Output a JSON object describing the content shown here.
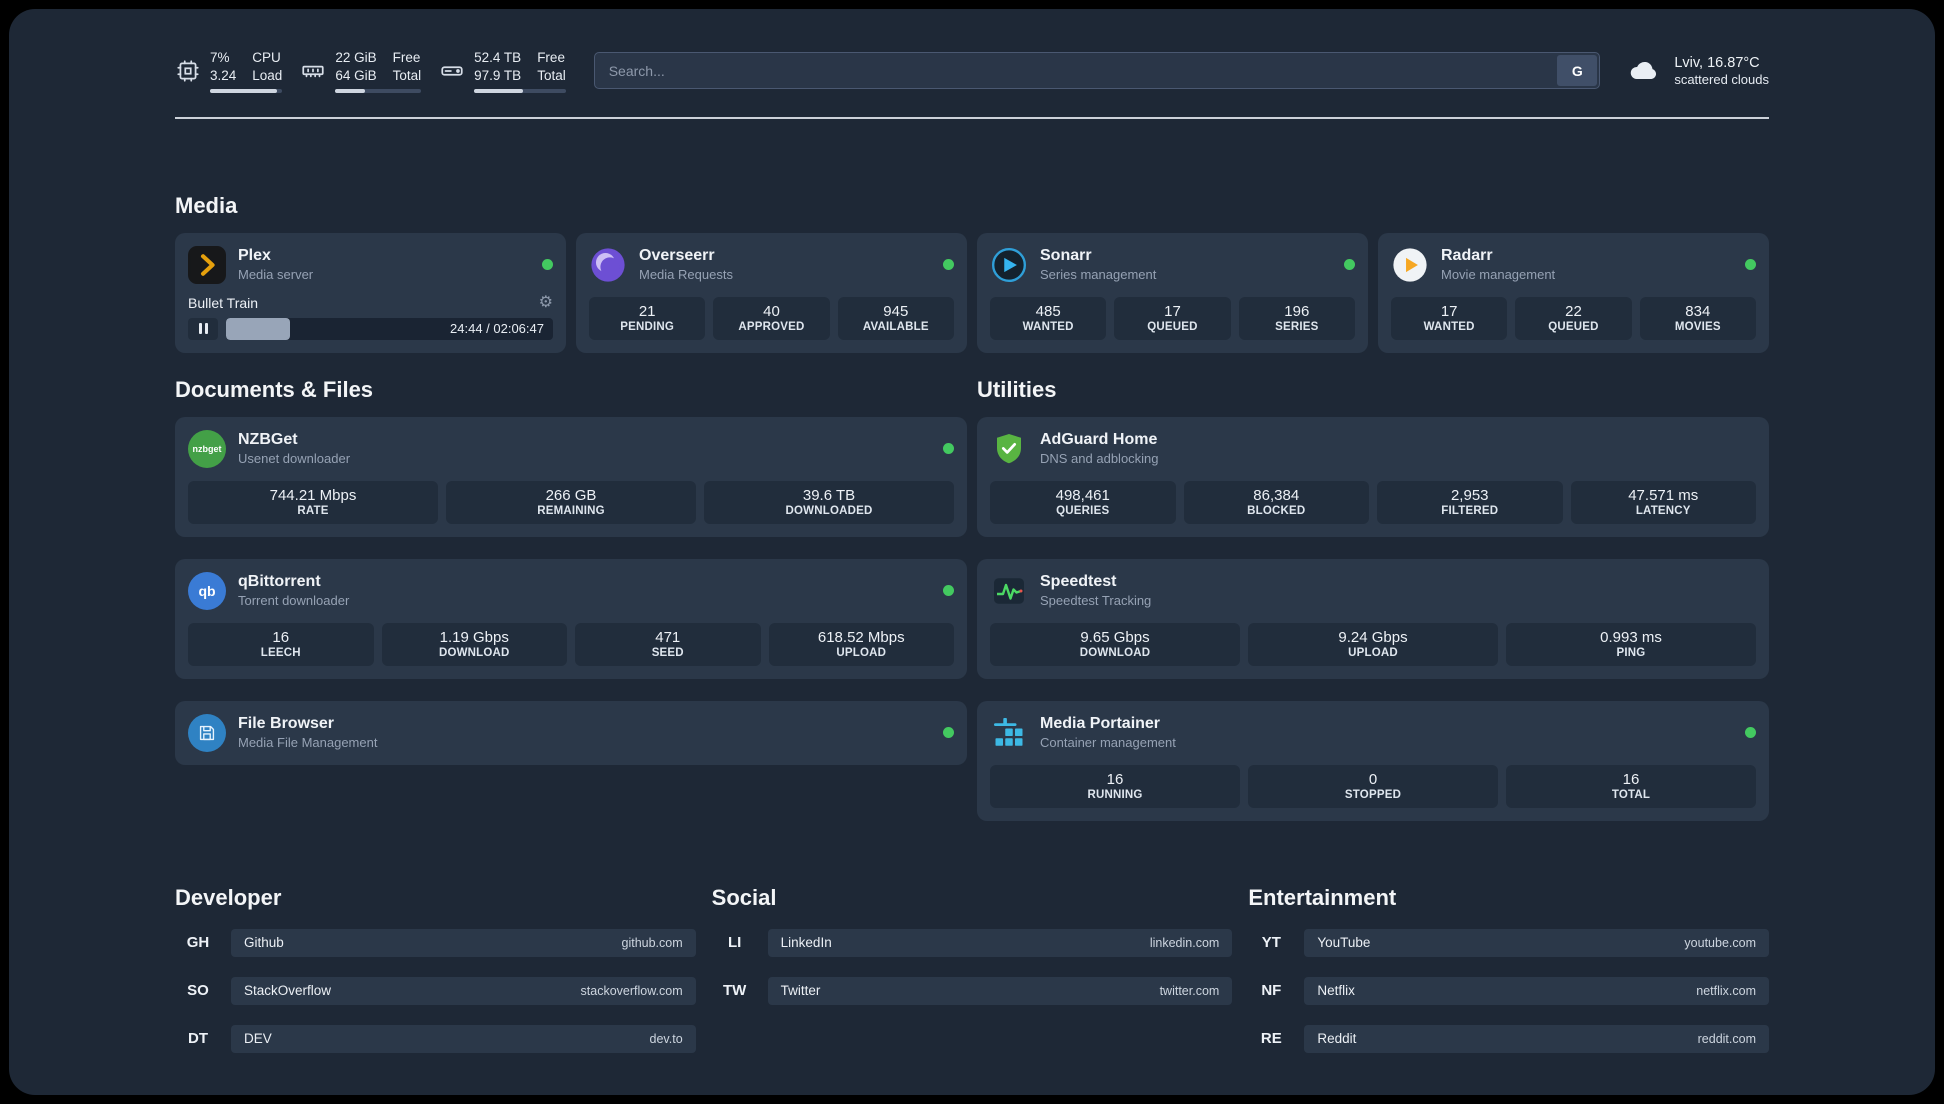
{
  "colors": {
    "background": "#1e2836",
    "card": "#2b3849",
    "status_green": "#43c960",
    "divider": "#ccd1d9",
    "plex_amber": "#e5a00d",
    "sonarr_blue": "#35b5f0",
    "radarr_amber": "#f6a723",
    "overseerr_purple": "#6d4fd4",
    "adguard_green": "#59b442",
    "portainer_cyan": "#3db9e5"
  },
  "topbar": {
    "cpu": {
      "value1": "7%",
      "value2": "3.24",
      "label1": "CPU",
      "label2": "Load",
      "bar_percent": 93
    },
    "ram": {
      "value1": "22 GiB",
      "value2": "64 GiB",
      "label1": "Free",
      "label2": "Total",
      "bar_percent": 34
    },
    "disk": {
      "value1": "52.4 TB",
      "value2": "97.9 TB",
      "label1": "Free",
      "label2": "Total",
      "bar_percent": 53
    },
    "search": {
      "placeholder": "Search...",
      "engine_label": "G"
    },
    "weather": {
      "location": "Lviv, 16.87°C",
      "condition": "scattered clouds"
    }
  },
  "media": {
    "title": "Media",
    "plex": {
      "name": "Plex",
      "subtitle": "Media server",
      "now_playing": "Bullet Train",
      "time": "24:44 / 02:06:47",
      "progress_percent": 19.5
    },
    "overseerr": {
      "name": "Overseerr",
      "subtitle": "Media Requests",
      "stats": [
        {
          "value": "21",
          "label": "PENDING"
        },
        {
          "value": "40",
          "label": "APPROVED"
        },
        {
          "value": "945",
          "label": "AVAILABLE"
        }
      ]
    },
    "sonarr": {
      "name": "Sonarr",
      "subtitle": "Series management",
      "stats": [
        {
          "value": "485",
          "label": "WANTED"
        },
        {
          "value": "17",
          "label": "QUEUED"
        },
        {
          "value": "196",
          "label": "SERIES"
        }
      ]
    },
    "radarr": {
      "name": "Radarr",
      "subtitle": "Movie management",
      "stats": [
        {
          "value": "17",
          "label": "WANTED"
        },
        {
          "value": "22",
          "label": "QUEUED"
        },
        {
          "value": "834",
          "label": "MOVIES"
        }
      ]
    }
  },
  "documents": {
    "title": "Documents & Files",
    "nzbget": {
      "name": "NZBGet",
      "subtitle": "Usenet downloader",
      "icon_text": "nzbget",
      "stats": [
        {
          "value": "744.21 Mbps",
          "label": "RATE"
        },
        {
          "value": "266 GB",
          "label": "REMAINING"
        },
        {
          "value": "39.6 TB",
          "label": "DOWNLOADED"
        }
      ]
    },
    "qbittorrent": {
      "name": "qBittorrent",
      "subtitle": "Torrent downloader",
      "icon_text": "qb",
      "stats": [
        {
          "value": "16",
          "label": "LEECH"
        },
        {
          "value": "1.19 Gbps",
          "label": "DOWNLOAD"
        },
        {
          "value": "471",
          "label": "SEED"
        },
        {
          "value": "618.52 Mbps",
          "label": "UPLOAD"
        }
      ]
    },
    "filebrowser": {
      "name": "File Browser",
      "subtitle": "Media File Management"
    }
  },
  "utilities": {
    "title": "Utilities",
    "adguard": {
      "name": "AdGuard Home",
      "subtitle": "DNS and adblocking",
      "stats": [
        {
          "value": "498,461",
          "label": "QUERIES"
        },
        {
          "value": "86,384",
          "label": "BLOCKED"
        },
        {
          "value": "2,953",
          "label": "FILTERED"
        },
        {
          "value": "47.571 ms",
          "label": "LATENCY"
        }
      ]
    },
    "speedtest": {
      "name": "Speedtest",
      "subtitle": "Speedtest Tracking",
      "stats": [
        {
          "value": "9.65 Gbps",
          "label": "DOWNLOAD"
        },
        {
          "value": "9.24 Gbps",
          "label": "UPLOAD"
        },
        {
          "value": "0.993 ms",
          "label": "PING"
        }
      ]
    },
    "portainer": {
      "name": "Media Portainer",
      "subtitle": "Container management",
      "stats": [
        {
          "value": "16",
          "label": "RUNNING"
        },
        {
          "value": "0",
          "label": "STOPPED"
        },
        {
          "value": "16",
          "label": "TOTAL"
        }
      ]
    }
  },
  "bookmarks": {
    "developer": {
      "title": "Developer",
      "items": [
        {
          "abbr": "GH",
          "name": "Github",
          "url": "github.com"
        },
        {
          "abbr": "SO",
          "name": "StackOverflow",
          "url": "stackoverflow.com"
        },
        {
          "abbr": "DT",
          "name": "DEV",
          "url": "dev.to"
        }
      ]
    },
    "social": {
      "title": "Social",
      "items": [
        {
          "abbr": "LI",
          "name": "LinkedIn",
          "url": "linkedin.com"
        },
        {
          "abbr": "TW",
          "name": "Twitter",
          "url": "twitter.com"
        }
      ]
    },
    "entertainment": {
      "title": "Entertainment",
      "items": [
        {
          "abbr": "YT",
          "name": "YouTube",
          "url": "youtube.com"
        },
        {
          "abbr": "NF",
          "name": "Netflix",
          "url": "netflix.com"
        },
        {
          "abbr": "RE",
          "name": "Reddit",
          "url": "reddit.com"
        }
      ]
    }
  }
}
